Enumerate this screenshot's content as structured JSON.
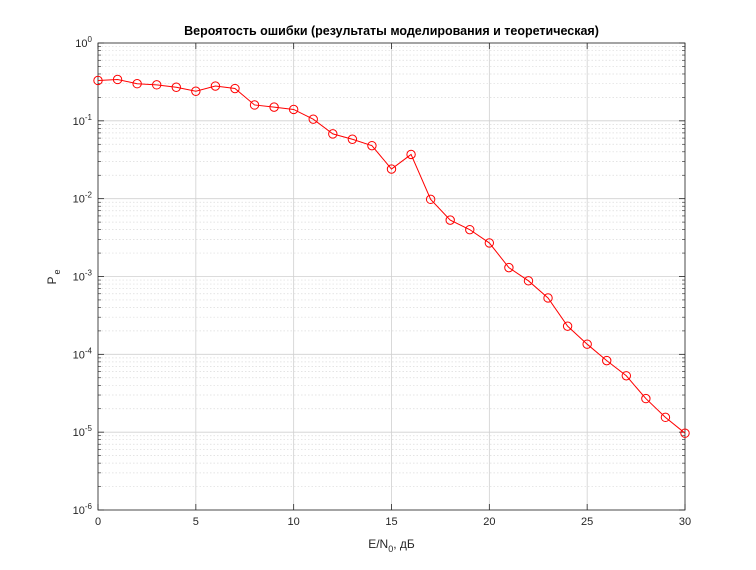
{
  "chart_data": {
    "type": "line",
    "title": "Вероятость ошибки (результаты моделирования и теоретическая)",
    "xlabel": "E/N",
    "xlabel_sub": "0",
    "xlabel_suffix": ", дБ",
    "ylabel": "P",
    "ylabel_sub": "e",
    "xlim": [
      0,
      30
    ],
    "ylim": [
      1e-06,
      1
    ],
    "yscale": "log",
    "grid": true,
    "minor_grid": true,
    "x_ticks": [
      "0",
      "5",
      "10",
      "15",
      "20",
      "25",
      "30"
    ],
    "y_ticks": [
      {
        "base": "10",
        "exp": "-6"
      },
      {
        "base": "10",
        "exp": "-5"
      },
      {
        "base": "10",
        "exp": "-4"
      },
      {
        "base": "10",
        "exp": "-3"
      },
      {
        "base": "10",
        "exp": "-2"
      },
      {
        "base": "10",
        "exp": "-1"
      },
      {
        "base": "10",
        "exp": "0"
      }
    ],
    "series": [
      {
        "color": "#ff0000",
        "marker": "circle",
        "x": [
          0,
          1,
          2,
          3,
          4,
          5,
          6,
          7,
          8,
          9,
          10,
          11,
          12,
          13,
          14,
          15,
          16,
          17,
          18,
          19,
          20,
          21,
          22,
          23,
          24,
          25,
          26,
          27,
          28,
          29,
          30
        ],
        "y": [
          0.33,
          0.34,
          0.3,
          0.29,
          0.27,
          0.24,
          0.28,
          0.26,
          0.16,
          0.15,
          0.14,
          0.105,
          0.068,
          0.058,
          0.048,
          0.024,
          0.037,
          0.0098,
          0.0053,
          0.004,
          0.0027,
          0.0013,
          0.00088,
          0.00053,
          0.00023,
          0.000135,
          8.3e-05,
          5.3e-05,
          2.7e-05,
          1.55e-05,
          9.7e-06
        ]
      }
    ]
  }
}
